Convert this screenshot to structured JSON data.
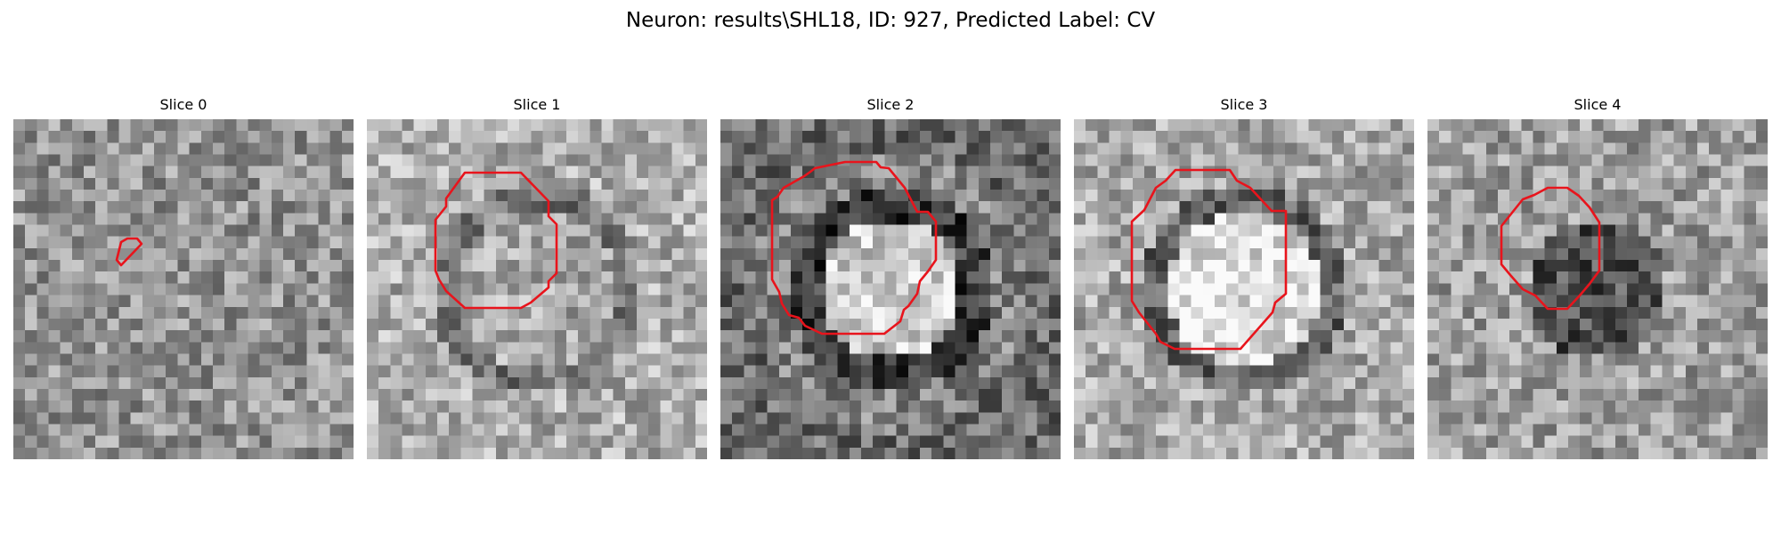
{
  "figure": {
    "title": "Neuron: results\\SHL18, ID: 927, Predicted Label: CV"
  },
  "panels": [
    {
      "title": "Slice 0",
      "variant": "noise",
      "contour": "small-blob"
    },
    {
      "title": "Slice 1",
      "variant": "faint-ring",
      "contour": "octagon"
    },
    {
      "title": "Slice 2",
      "variant": "dark-ring-bright-core",
      "contour": "octagon"
    },
    {
      "title": "Slice 3",
      "variant": "bright-disc",
      "contour": "octagon"
    },
    {
      "title": "Slice 4",
      "variant": "dark-blob",
      "contour": "octagon"
    }
  ],
  "colors": {
    "contour": "#e8141c",
    "background": "#ffffff"
  }
}
